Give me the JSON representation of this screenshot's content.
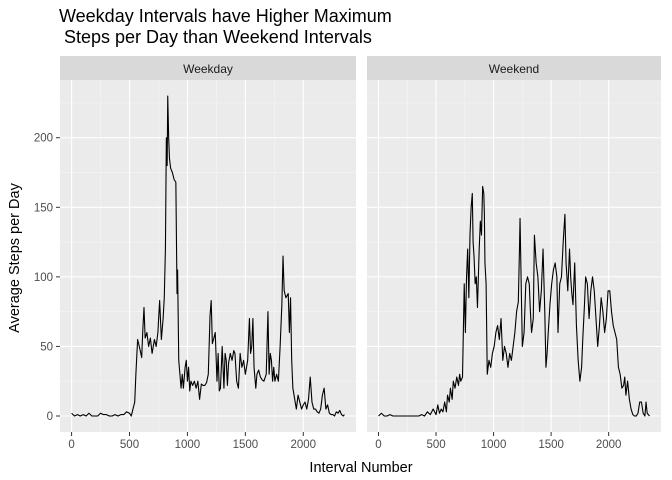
{
  "chart_data": {
    "type": "line",
    "title_lines": [
      "Weekday Intervals have Higher Maximum",
      " Steps per Day than Weekend Intervals"
    ],
    "xlabel": "Interval Number",
    "ylabel": "Average Steps per Day",
    "xlim": [
      -100,
      2455
    ],
    "ylim": [
      -11.5,
      241.5
    ],
    "x_ticks": [
      0,
      500,
      1000,
      1500,
      2000
    ],
    "y_ticks": [
      0,
      50,
      100,
      150,
      200
    ],
    "grid": true,
    "line_color": "#000000",
    "panel_background": "#ebebeb",
    "strip_background": "#d9d9d9",
    "facets": [
      {
        "name": "Weekday",
        "points": [
          [
            0,
            2
          ],
          [
            25,
            0
          ],
          [
            50,
            1
          ],
          [
            75,
            0
          ],
          [
            100,
            1
          ],
          [
            125,
            0
          ],
          [
            150,
            2
          ],
          [
            175,
            0
          ],
          [
            200,
            0
          ],
          [
            225,
            0
          ],
          [
            250,
            2
          ],
          [
            275,
            1
          ],
          [
            300,
            1
          ],
          [
            325,
            0
          ],
          [
            350,
            0
          ],
          [
            375,
            1
          ],
          [
            400,
            0
          ],
          [
            425,
            1
          ],
          [
            450,
            1
          ],
          [
            475,
            3
          ],
          [
            500,
            2
          ],
          [
            515,
            0
          ],
          [
            530,
            5
          ],
          [
            545,
            10
          ],
          [
            555,
            30
          ],
          [
            570,
            55
          ],
          [
            590,
            48
          ],
          [
            605,
            42
          ],
          [
            615,
            62
          ],
          [
            625,
            78
          ],
          [
            635,
            56
          ],
          [
            650,
            60
          ],
          [
            665,
            50
          ],
          [
            680,
            56
          ],
          [
            695,
            45
          ],
          [
            715,
            55
          ],
          [
            730,
            50
          ],
          [
            745,
            60
          ],
          [
            760,
            83
          ],
          [
            775,
            55
          ],
          [
            790,
            70
          ],
          [
            800,
            85
          ],
          [
            810,
            120
          ],
          [
            818,
            200
          ],
          [
            825,
            180
          ],
          [
            830,
            230
          ],
          [
            838,
            200
          ],
          [
            845,
            185
          ],
          [
            855,
            178
          ],
          [
            870,
            175
          ],
          [
            885,
            170
          ],
          [
            900,
            168
          ],
          [
            910,
            88
          ],
          [
            915,
            105
          ],
          [
            925,
            40
          ],
          [
            935,
            30
          ],
          [
            945,
            20
          ],
          [
            955,
            30
          ],
          [
            965,
            20
          ],
          [
            980,
            35
          ],
          [
            990,
            40
          ],
          [
            1000,
            25
          ],
          [
            1010,
            35
          ],
          [
            1020,
            18
          ],
          [
            1030,
            25
          ],
          [
            1045,
            22
          ],
          [
            1060,
            25
          ],
          [
            1075,
            20
          ],
          [
            1090,
            25
          ],
          [
            1105,
            12
          ],
          [
            1120,
            23
          ],
          [
            1135,
            22
          ],
          [
            1150,
            22
          ],
          [
            1165,
            24
          ],
          [
            1180,
            30
          ],
          [
            1195,
            72
          ],
          [
            1205,
            83
          ],
          [
            1215,
            52
          ],
          [
            1225,
            55
          ],
          [
            1240,
            60
          ],
          [
            1255,
            25
          ],
          [
            1265,
            45
          ],
          [
            1275,
            18
          ],
          [
            1285,
            20
          ],
          [
            1300,
            50
          ],
          [
            1315,
            20
          ],
          [
            1325,
            45
          ],
          [
            1335,
            40
          ],
          [
            1345,
            22
          ],
          [
            1355,
            38
          ],
          [
            1370,
            45
          ],
          [
            1385,
            40
          ],
          [
            1400,
            47
          ],
          [
            1410,
            45
          ],
          [
            1425,
            25
          ],
          [
            1440,
            20
          ],
          [
            1455,
            45
          ],
          [
            1470,
            35
          ],
          [
            1485,
            40
          ],
          [
            1500,
            30
          ],
          [
            1510,
            35
          ],
          [
            1520,
            40
          ],
          [
            1535,
            70
          ],
          [
            1545,
            45
          ],
          [
            1555,
            50
          ],
          [
            1565,
            70
          ],
          [
            1575,
            35
          ],
          [
            1590,
            20
          ],
          [
            1600,
            30
          ],
          [
            1615,
            33
          ],
          [
            1630,
            28
          ],
          [
            1645,
            26
          ],
          [
            1660,
            25
          ],
          [
            1680,
            30
          ],
          [
            1695,
            75
          ],
          [
            1705,
            30
          ],
          [
            1715,
            45
          ],
          [
            1725,
            40
          ],
          [
            1735,
            25
          ],
          [
            1745,
            35
          ],
          [
            1755,
            25
          ],
          [
            1770,
            30
          ],
          [
            1785,
            25
          ],
          [
            1800,
            50
          ],
          [
            1815,
            80
          ],
          [
            1825,
            115
          ],
          [
            1835,
            90
          ],
          [
            1850,
            85
          ],
          [
            1870,
            88
          ],
          [
            1880,
            60
          ],
          [
            1890,
            85
          ],
          [
            1900,
            40
          ],
          [
            1910,
            20
          ],
          [
            1920,
            15
          ],
          [
            1930,
            10
          ],
          [
            1940,
            5
          ],
          [
            1955,
            15
          ],
          [
            1970,
            10
          ],
          [
            1985,
            5
          ],
          [
            2000,
            8
          ],
          [
            2015,
            10
          ],
          [
            2030,
            5
          ],
          [
            2045,
            12
          ],
          [
            2060,
            28
          ],
          [
            2075,
            10
          ],
          [
            2090,
            5
          ],
          [
            2105,
            5
          ],
          [
            2120,
            3
          ],
          [
            2135,
            2
          ],
          [
            2150,
            5
          ],
          [
            2165,
            15
          ],
          [
            2180,
            20
          ],
          [
            2195,
            5
          ],
          [
            2210,
            8
          ],
          [
            2225,
            2
          ],
          [
            2240,
            1
          ],
          [
            2255,
            1
          ],
          [
            2270,
            0
          ],
          [
            2285,
            3
          ],
          [
            2300,
            2
          ],
          [
            2315,
            4
          ],
          [
            2330,
            1
          ],
          [
            2345,
            0
          ],
          [
            2355,
            1
          ]
        ]
      },
      {
        "name": "Weekend",
        "points": [
          [
            0,
            0
          ],
          [
            25,
            2
          ],
          [
            50,
            0
          ],
          [
            75,
            0
          ],
          [
            100,
            1
          ],
          [
            125,
            0
          ],
          [
            150,
            0
          ],
          [
            175,
            0
          ],
          [
            200,
            0
          ],
          [
            225,
            0
          ],
          [
            250,
            0
          ],
          [
            275,
            0
          ],
          [
            300,
            0
          ],
          [
            325,
            0
          ],
          [
            350,
            0
          ],
          [
            375,
            1
          ],
          [
            400,
            0
          ],
          [
            425,
            3
          ],
          [
            450,
            1
          ],
          [
            475,
            5
          ],
          [
            500,
            1
          ],
          [
            515,
            8
          ],
          [
            530,
            2
          ],
          [
            545,
            5
          ],
          [
            560,
            3
          ],
          [
            575,
            10
          ],
          [
            590,
            3
          ],
          [
            600,
            15
          ],
          [
            615,
            10
          ],
          [
            625,
            20
          ],
          [
            640,
            12
          ],
          [
            650,
            25
          ],
          [
            665,
            20
          ],
          [
            680,
            28
          ],
          [
            695,
            22
          ],
          [
            705,
            30
          ],
          [
            715,
            25
          ],
          [
            730,
            28
          ],
          [
            745,
            95
          ],
          [
            755,
            60
          ],
          [
            765,
            100
          ],
          [
            775,
            120
          ],
          [
            785,
            85
          ],
          [
            795,
            130
          ],
          [
            805,
            150
          ],
          [
            815,
            160
          ],
          [
            822,
            125
          ],
          [
            830,
            115
          ],
          [
            840,
            95
          ],
          [
            850,
            100
          ],
          [
            860,
            78
          ],
          [
            875,
            120
          ],
          [
            885,
            140
          ],
          [
            895,
            130
          ],
          [
            905,
            165
          ],
          [
            915,
            160
          ],
          [
            920,
            145
          ],
          [
            925,
            110
          ],
          [
            935,
            95
          ],
          [
            945,
            30
          ],
          [
            960,
            40
          ],
          [
            975,
            35
          ],
          [
            990,
            45
          ],
          [
            1005,
            50
          ],
          [
            1020,
            60
          ],
          [
            1035,
            65
          ],
          [
            1050,
            55
          ],
          [
            1065,
            70
          ],
          [
            1080,
            40
          ],
          [
            1095,
            50
          ],
          [
            1110,
            45
          ],
          [
            1125,
            35
          ],
          [
            1140,
            45
          ],
          [
            1155,
            40
          ],
          [
            1170,
            50
          ],
          [
            1185,
            60
          ],
          [
            1200,
            75
          ],
          [
            1215,
            82
          ],
          [
            1225,
            120
          ],
          [
            1230,
            142
          ],
          [
            1240,
            95
          ],
          [
            1250,
            50
          ],
          [
            1265,
            60
          ],
          [
            1280,
            95
          ],
          [
            1295,
            100
          ],
          [
            1310,
            95
          ],
          [
            1320,
            75
          ],
          [
            1330,
            60
          ],
          [
            1345,
            70
          ],
          [
            1355,
            130
          ],
          [
            1370,
            110
          ],
          [
            1385,
            100
          ],
          [
            1400,
            75
          ],
          [
            1415,
            90
          ],
          [
            1430,
            120
          ],
          [
            1445,
            75
          ],
          [
            1455,
            35
          ],
          [
            1465,
            45
          ],
          [
            1475,
            60
          ],
          [
            1490,
            80
          ],
          [
            1505,
            95
          ],
          [
            1520,
            105
          ],
          [
            1535,
            110
          ],
          [
            1550,
            100
          ],
          [
            1560,
            60
          ],
          [
            1575,
            95
          ],
          [
            1590,
            100
          ],
          [
            1605,
            125
          ],
          [
            1620,
            145
          ],
          [
            1630,
            110
          ],
          [
            1645,
            90
          ],
          [
            1660,
            120
          ],
          [
            1670,
            100
          ],
          [
            1680,
            88
          ],
          [
            1690,
            80
          ],
          [
            1705,
            110
          ],
          [
            1720,
            65
          ],
          [
            1735,
            40
          ],
          [
            1750,
            25
          ],
          [
            1765,
            35
          ],
          [
            1775,
            55
          ],
          [
            1790,
            80
          ],
          [
            1800,
            100
          ],
          [
            1815,
            95
          ],
          [
            1830,
            70
          ],
          [
            1845,
            90
          ],
          [
            1860,
            100
          ],
          [
            1875,
            90
          ],
          [
            1890,
            70
          ],
          [
            1905,
            50
          ],
          [
            1920,
            65
          ],
          [
            1935,
            85
          ],
          [
            1950,
            75
          ],
          [
            1965,
            60
          ],
          [
            1980,
            70
          ],
          [
            1995,
            90
          ],
          [
            2010,
            90
          ],
          [
            2025,
            75
          ],
          [
            2040,
            65
          ],
          [
            2055,
            60
          ],
          [
            2070,
            55
          ],
          [
            2085,
            35
          ],
          [
            2100,
            30
          ],
          [
            2115,
            20
          ],
          [
            2130,
            22
          ],
          [
            2140,
            28
          ],
          [
            2150,
            15
          ],
          [
            2165,
            25
          ],
          [
            2180,
            12
          ],
          [
            2195,
            5
          ],
          [
            2210,
            1
          ],
          [
            2225,
            0
          ],
          [
            2240,
            0
          ],
          [
            2255,
            2
          ],
          [
            2270,
            10
          ],
          [
            2285,
            10
          ],
          [
            2300,
            2
          ],
          [
            2315,
            0
          ],
          [
            2325,
            10
          ],
          [
            2335,
            2
          ],
          [
            2345,
            1
          ],
          [
            2355,
            0
          ]
        ]
      }
    ]
  }
}
